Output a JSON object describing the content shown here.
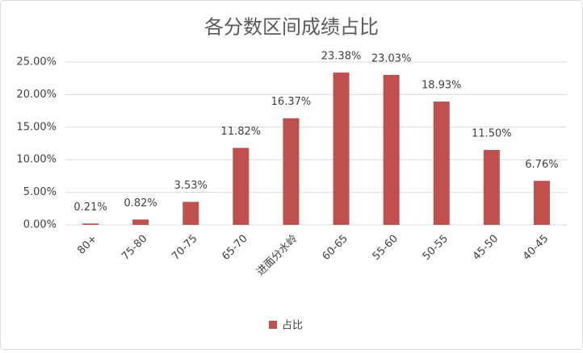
{
  "chart_data": {
    "type": "bar",
    "title": "各分数区间成绩占比",
    "categories": [
      "80+",
      "75-80",
      "70-75",
      "65-70",
      "进面分水岭",
      "60-65",
      "55-60",
      "50-55",
      "45-50",
      "40-45"
    ],
    "series": [
      {
        "name": "占比",
        "color": "#c0504d",
        "values": [
          0.21,
          0.82,
          3.53,
          11.82,
          16.37,
          23.38,
          23.03,
          18.93,
          11.5,
          6.76
        ],
        "value_labels": [
          "0.21%",
          "0.82%",
          "3.53%",
          "11.82%",
          "16.37%",
          "23.38%",
          "23.03%",
          "18.93%",
          "11.50%",
          "6.76%"
        ]
      }
    ],
    "ylim": [
      0,
      25
    ],
    "yticks": [
      {
        "value": 0,
        "label": "0.00%"
      },
      {
        "value": 5,
        "label": "5.00%"
      },
      {
        "value": 10,
        "label": "10.00%"
      },
      {
        "value": 15,
        "label": "15.00%"
      },
      {
        "value": 20,
        "label": "20.00%"
      },
      {
        "value": 25,
        "label": "25.00%"
      }
    ],
    "grid": true,
    "legend": "bottom"
  }
}
